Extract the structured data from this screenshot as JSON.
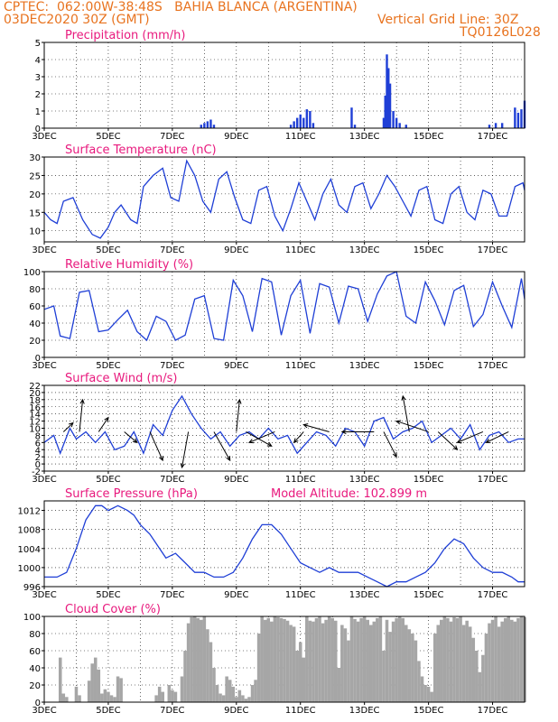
{
  "header": {
    "line1": "CPTEC:  062:00W-38:48S   BAHIA BLANCA (ARGENTINA)",
    "line2_left": "03DEC2020 30Z (GMT)",
    "line2_right": "Vertical Grid Line: 30Z",
    "line3_right": "TQ0126L028",
    "header_color": "#e8731f"
  },
  "colors": {
    "title": "#e8197d",
    "line": "#1f3fd6",
    "bar": "#1f3fd6",
    "cloud": "#a6a6a6"
  },
  "x_ticks": [
    {
      "day": 3,
      "label": "3DEC"
    },
    {
      "day": 5,
      "label": "5DEC"
    },
    {
      "day": 7,
      "label": "7DEC"
    },
    {
      "day": 9,
      "label": "9DEC"
    },
    {
      "day": 11,
      "label": "11DEC"
    },
    {
      "day": 13,
      "label": "13DEC"
    },
    {
      "day": 15,
      "label": "15DEC"
    },
    {
      "day": 17,
      "label": "17DEC"
    }
  ],
  "chart_data": [
    {
      "type": "bar",
      "title": "Precipitation (mm/h)",
      "ylim": [
        0,
        5
      ],
      "yticks": [
        0,
        1,
        2,
        3,
        4,
        5
      ],
      "x": [
        7.9,
        8.0,
        8.1,
        8.2,
        8.3,
        10.7,
        10.8,
        10.9,
        11.0,
        11.1,
        11.2,
        11.3,
        11.4,
        12.6,
        12.7,
        13.6,
        13.65,
        13.7,
        13.75,
        13.8,
        13.9,
        14.0,
        14.1,
        14.3,
        16.9,
        17.1,
        17.3,
        17.7,
        17.8,
        17.9,
        18.0
      ],
      "values": [
        0.2,
        0.3,
        0.4,
        0.5,
        0.2,
        0.2,
        0.4,
        0.6,
        0.8,
        0.6,
        1.1,
        1.0,
        0.3,
        1.2,
        0.2,
        0.6,
        1.9,
        4.3,
        3.5,
        2.6,
        1.0,
        0.6,
        0.3,
        0.2,
        0.2,
        0.3,
        0.3,
        1.2,
        0.9,
        1.1,
        1.6
      ]
    },
    {
      "type": "line",
      "title": "Surface Temperature (nC)",
      "ylim": [
        7,
        30
      ],
      "yticks": [
        10,
        15,
        20,
        25,
        30
      ],
      "x": [
        3.0,
        3.2,
        3.4,
        3.6,
        3.9,
        4.2,
        4.5,
        4.75,
        5.0,
        5.2,
        5.4,
        5.7,
        5.9,
        6.1,
        6.4,
        6.7,
        6.95,
        7.2,
        7.45,
        7.7,
        7.95,
        8.2,
        8.45,
        8.7,
        8.95,
        9.2,
        9.45,
        9.7,
        9.95,
        10.2,
        10.45,
        10.7,
        10.95,
        11.2,
        11.45,
        11.7,
        11.95,
        12.2,
        12.45,
        12.7,
        12.95,
        13.2,
        13.45,
        13.7,
        13.95,
        14.2,
        14.45,
        14.7,
        14.95,
        15.2,
        15.45,
        15.7,
        15.95,
        16.2,
        16.45,
        16.7,
        16.95,
        17.2,
        17.45,
        17.7,
        17.95,
        18.0
      ],
      "values": [
        15,
        13,
        12,
        18,
        19,
        13,
        9,
        8,
        11,
        15,
        17,
        13,
        12,
        22,
        25,
        27,
        19,
        18,
        29,
        25,
        18,
        15,
        24,
        26,
        19,
        13,
        12,
        21,
        22,
        14,
        10,
        16,
        23,
        18,
        13,
        20,
        24,
        17,
        15,
        22,
        23,
        16,
        20,
        25,
        22,
        18,
        14,
        21,
        22,
        13,
        12,
        20,
        22,
        15,
        13,
        21,
        20,
        14,
        14,
        22,
        23,
        21
      ]
    },
    {
      "type": "line",
      "title": "Relative Humidity (%)",
      "ylim": [
        0,
        100
      ],
      "yticks": [
        0,
        20,
        40,
        60,
        80,
        100
      ],
      "x": [
        3.0,
        3.3,
        3.5,
        3.8,
        4.1,
        4.4,
        4.7,
        5.0,
        5.3,
        5.6,
        5.9,
        6.2,
        6.5,
        6.8,
        7.1,
        7.4,
        7.7,
        8.0,
        8.3,
        8.6,
        8.9,
        9.2,
        9.5,
        9.8,
        10.1,
        10.4,
        10.7,
        11.0,
        11.3,
        11.6,
        11.9,
        12.2,
        12.5,
        12.8,
        13.1,
        13.4,
        13.7,
        14.0,
        14.3,
        14.6,
        14.9,
        15.2,
        15.5,
        15.8,
        16.1,
        16.4,
        16.7,
        17.0,
        17.3,
        17.6,
        17.9,
        18.0
      ],
      "values": [
        56,
        60,
        25,
        22,
        76,
        78,
        30,
        32,
        44,
        55,
        30,
        20,
        48,
        42,
        20,
        26,
        68,
        72,
        22,
        20,
        90,
        72,
        30,
        92,
        88,
        26,
        72,
        90,
        28,
        86,
        82,
        40,
        83,
        80,
        42,
        74,
        95,
        100,
        48,
        40,
        88,
        66,
        38,
        78,
        84,
        36,
        50,
        88,
        60,
        35,
        92,
        68
      ]
    },
    {
      "type": "line",
      "title": "Surface Wind (m/s)",
      "ylim": [
        -2,
        22
      ],
      "yticks": [
        -2,
        0,
        2,
        4,
        6,
        8,
        10,
        12,
        14,
        16,
        18,
        20,
        22
      ],
      "x": [
        3.0,
        3.3,
        3.5,
        3.8,
        4.0,
        4.3,
        4.6,
        4.9,
        5.2,
        5.5,
        5.8,
        6.1,
        6.4,
        6.7,
        7.0,
        7.3,
        7.6,
        7.9,
        8.2,
        8.5,
        8.8,
        9.1,
        9.4,
        9.7,
        10.0,
        10.3,
        10.6,
        10.9,
        11.2,
        11.5,
        11.8,
        12.1,
        12.4,
        12.7,
        13.0,
        13.3,
        13.6,
        13.9,
        14.2,
        14.5,
        14.8,
        15.1,
        15.4,
        15.7,
        16.0,
        16.3,
        16.6,
        16.9,
        17.2,
        17.5,
        17.8,
        18.0
      ],
      "values": [
        6,
        8,
        3,
        10,
        7,
        9,
        6,
        9,
        4,
        5,
        9,
        3,
        11,
        8,
        15,
        19,
        14,
        10,
        7,
        9,
        5,
        8,
        9,
        7,
        10,
        7,
        8,
        3,
        6,
        9,
        8,
        5,
        10,
        9,
        5,
        12,
        13,
        7,
        9,
        10,
        12,
        6,
        8,
        10,
        7,
        11,
        4,
        8,
        9,
        6,
        7,
        7
      ],
      "arrows": [
        {
          "x": 3.6,
          "dx": 0.3,
          "dy": 2.5
        },
        {
          "x": 4.1,
          "dx": 0.1,
          "dy": 9
        },
        {
          "x": 4.7,
          "dx": 0.3,
          "dy": 4
        },
        {
          "x": 5.5,
          "dx": 0.4,
          "dy": -3
        },
        {
          "x": 6.3,
          "dx": 0.4,
          "dy": -8
        },
        {
          "x": 7.5,
          "dx": -0.2,
          "dy": -10
        },
        {
          "x": 8.3,
          "dx": 0.5,
          "dy": -8
        },
        {
          "x": 9.0,
          "dx": 0.1,
          "dy": 9
        },
        {
          "x": 9.3,
          "dx": 0.8,
          "dy": -4
        },
        {
          "x": 10.2,
          "dx": -0.8,
          "dy": -3
        },
        {
          "x": 11.1,
          "dx": -0.3,
          "dy": -3
        },
        {
          "x": 11.9,
          "dx": -0.8,
          "dy": 2
        },
        {
          "x": 13.3,
          "dx": -1.0,
          "dy": 0
        },
        {
          "x": 13.6,
          "dx": 0.4,
          "dy": -7
        },
        {
          "x": 14.4,
          "dx": -0.2,
          "dy": 10
        },
        {
          "x": 15.0,
          "dx": -1.0,
          "dy": 3
        },
        {
          "x": 15.3,
          "dx": 0.6,
          "dy": -5
        },
        {
          "x": 16.7,
          "dx": -0.8,
          "dy": -3
        },
        {
          "x": 17.5,
          "dx": -0.7,
          "dy": -3
        }
      ]
    },
    {
      "type": "line",
      "title": "Surface Pressure (hPa)",
      "subtitle": "Model Altitude: 102.899 m",
      "ylim": [
        996,
        1014
      ],
      "yticks": [
        996,
        1000,
        1004,
        1008,
        1012
      ],
      "x": [
        3.0,
        3.4,
        3.7,
        4.0,
        4.3,
        4.6,
        4.8,
        5.0,
        5.3,
        5.6,
        5.8,
        6.0,
        6.3,
        6.6,
        6.8,
        7.1,
        7.4,
        7.7,
        8.0,
        8.3,
        8.6,
        8.9,
        9.2,
        9.5,
        9.8,
        10.1,
        10.4,
        10.7,
        11.0,
        11.3,
        11.6,
        11.9,
        12.2,
        12.5,
        12.8,
        13.1,
        13.4,
        13.7,
        14.0,
        14.3,
        14.6,
        14.9,
        15.2,
        15.5,
        15.8,
        16.1,
        16.4,
        16.7,
        17.0,
        17.3,
        17.6,
        17.8,
        18.0
      ],
      "values": [
        998,
        998,
        999,
        1004,
        1010,
        1013,
        1013,
        1012,
        1013,
        1012,
        1011,
        1009,
        1007,
        1004,
        1002,
        1003,
        1001,
        999,
        999,
        998,
        998,
        999,
        1002,
        1006,
        1009,
        1009,
        1007,
        1004,
        1001,
        1000,
        999,
        1000,
        999,
        999,
        999,
        998,
        997,
        996,
        997,
        997,
        998,
        999,
        1001,
        1004,
        1006,
        1005,
        1002,
        1000,
        999,
        999,
        998,
        997,
        997
      ]
    },
    {
      "type": "bar",
      "title": "Cloud Cover (%)",
      "ylim": [
        0,
        100
      ],
      "yticks": [
        0,
        20,
        40,
        60,
        80,
        100
      ],
      "x": [
        3.5,
        3.6,
        3.7,
        4.0,
        4.1,
        4.4,
        4.5,
        4.6,
        4.7,
        4.8,
        4.9,
        5.0,
        5.1,
        5.2,
        5.3,
        5.4,
        6.5,
        6.6,
        6.7,
        6.9,
        7.0,
        7.1,
        7.3,
        7.4,
        7.5,
        7.6,
        7.7,
        7.8,
        7.9,
        8.0,
        8.1,
        8.2,
        8.3,
        8.4,
        8.5,
        8.6,
        8.7,
        8.8,
        8.9,
        9.0,
        9.1,
        9.2,
        9.3,
        9.4,
        9.5,
        9.6,
        9.7,
        9.8,
        9.9,
        10.0,
        10.1,
        10.2,
        10.3,
        10.4,
        10.5,
        10.6,
        10.7,
        10.8,
        10.9,
        11.0,
        11.1,
        11.2,
        11.3,
        11.4,
        11.5,
        11.6,
        11.7,
        11.8,
        11.9,
        12.0,
        12.1,
        12.2,
        12.3,
        12.4,
        12.5,
        12.6,
        12.7,
        12.8,
        12.9,
        13.0,
        13.1,
        13.2,
        13.3,
        13.4,
        13.5,
        13.6,
        13.7,
        13.8,
        13.9,
        14.0,
        14.1,
        14.2,
        14.3,
        14.4,
        14.5,
        14.6,
        14.7,
        14.8,
        14.9,
        15.0,
        15.1,
        15.2,
        15.3,
        15.4,
        15.5,
        15.6,
        15.7,
        15.8,
        15.9,
        16.0,
        16.1,
        16.2,
        16.3,
        16.4,
        16.5,
        16.6,
        16.7,
        16.8,
        16.9,
        17.0,
        17.1,
        17.2,
        17.3,
        17.4,
        17.5,
        17.6,
        17.7,
        17.8,
        17.9,
        18.0
      ],
      "values": [
        52,
        10,
        6,
        18,
        8,
        25,
        45,
        52,
        38,
        10,
        15,
        12,
        8,
        6,
        30,
        28,
        8,
        18,
        12,
        20,
        14,
        12,
        30,
        60,
        92,
        99,
        100,
        98,
        96,
        100,
        85,
        70,
        40,
        20,
        10,
        8,
        30,
        26,
        18,
        6,
        14,
        8,
        4,
        6,
        20,
        26,
        80,
        100,
        96,
        98,
        94,
        100,
        99,
        98,
        97,
        95,
        90,
        88,
        60,
        70,
        52,
        100,
        95,
        94,
        98,
        100,
        92,
        96,
        100,
        98,
        95,
        40,
        90,
        86,
        72,
        100,
        97,
        94,
        98,
        100,
        96,
        90,
        94,
        98,
        100,
        60,
        96,
        82,
        94,
        98,
        100,
        98,
        90,
        85,
        80,
        72,
        48,
        30,
        20,
        18,
        12,
        80,
        90,
        96,
        100,
        98,
        94,
        99,
        98,
        100,
        90,
        95,
        88,
        75,
        60,
        35,
        55,
        80,
        92,
        96,
        100,
        88,
        94,
        98,
        100,
        96,
        94,
        98,
        100,
        99
      ]
    }
  ]
}
